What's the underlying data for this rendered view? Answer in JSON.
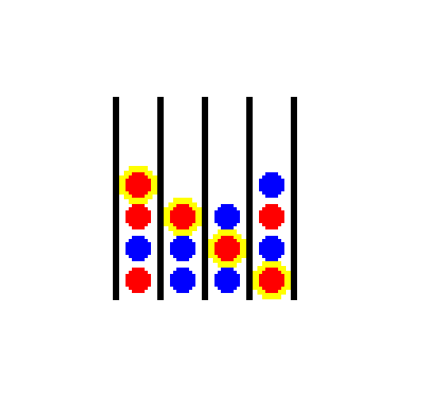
{
  "game": {
    "columns": [
      {
        "balls": [
          {
            "color": "red",
            "highlighted": false
          },
          {
            "color": "blue",
            "highlighted": false
          },
          {
            "color": "red",
            "highlighted": false
          },
          {
            "color": "red",
            "highlighted": true
          }
        ]
      },
      {
        "balls": [
          {
            "color": "blue",
            "highlighted": false
          },
          {
            "color": "blue",
            "highlighted": false
          },
          {
            "color": "red",
            "highlighted": true
          }
        ]
      },
      {
        "balls": [
          {
            "color": "blue",
            "highlighted": false
          },
          {
            "color": "red",
            "highlighted": true
          },
          {
            "color": "blue",
            "highlighted": false
          }
        ]
      },
      {
        "balls": [
          {
            "color": "red",
            "highlighted": true
          },
          {
            "color": "blue",
            "highlighted": false
          },
          {
            "color": "red",
            "highlighted": false
          },
          {
            "color": "blue",
            "highlighted": false
          }
        ]
      }
    ]
  },
  "colors": {
    "background": "#ffffff",
    "wall": "#000000",
    "red": "#ff0000",
    "blue": "#0000ff",
    "highlight": "#ffff00"
  }
}
